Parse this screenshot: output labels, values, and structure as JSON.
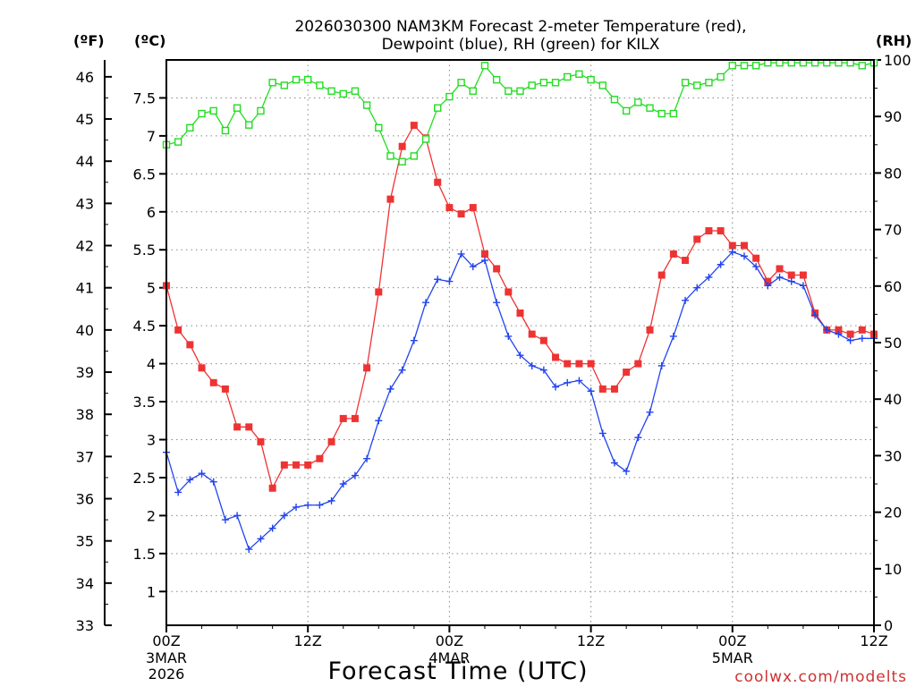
{
  "chart_data": {
    "type": "line",
    "title_line1": "2026030300 NAM3KM Forecast 2-meter Temperature (red),",
    "title_line2": "Dewpoint (blue), RH (green) for KILX",
    "xlabel": "Forecast Time (UTC)",
    "credit": "coolwx.com/modelts",
    "left_units_f": "(ºF)",
    "left_units_c": "(ºC)",
    "right_units": "(RH)",
    "x_range": [
      0,
      60
    ],
    "f_range": [
      33,
      46.4
    ],
    "rh_range": [
      0,
      100
    ],
    "f_ticks": [
      "33",
      "34",
      "35",
      "36",
      "37",
      "38",
      "39",
      "40",
      "41",
      "42",
      "43",
      "44",
      "45",
      "46"
    ],
    "c_ticks": [
      "1",
      "1.5",
      "2",
      "2.5",
      "3",
      "3.5",
      "4",
      "4.5",
      "5",
      "5.5",
      "6",
      "6.5",
      "7",
      "7.5"
    ],
    "rh_ticks": [
      "0",
      "10",
      "20",
      "30",
      "40",
      "50",
      "60",
      "70",
      "80",
      "90",
      "100"
    ],
    "x_ticks": [
      {
        "hour": 0,
        "label": "00Z",
        "date": "3MAR",
        "year": "2026"
      },
      {
        "hour": 12,
        "label": "12Z",
        "date": "",
        "year": ""
      },
      {
        "hour": 24,
        "label": "00Z",
        "date": "4MAR",
        "year": ""
      },
      {
        "hour": 36,
        "label": "12Z",
        "date": "",
        "year": ""
      },
      {
        "hour": 48,
        "label": "00Z",
        "date": "5MAR",
        "year": ""
      },
      {
        "hour": 60,
        "label": "12Z",
        "date": "",
        "year": ""
      }
    ],
    "series": [
      {
        "name": "Temperature",
        "color": "#ee3333",
        "axis": "F",
        "marker": "filled-square",
        "values": [
          41.05,
          40.0,
          39.65,
          39.1,
          38.75,
          38.6,
          37.7,
          37.7,
          37.35,
          36.25,
          36.8,
          36.8,
          36.8,
          36.95,
          37.35,
          37.9,
          37.9,
          39.1,
          40.9,
          43.1,
          44.35,
          44.85,
          44.55,
          43.5,
          42.9,
          42.75,
          42.9,
          41.8,
          41.45,
          40.9,
          40.4,
          39.9,
          39.75,
          39.35,
          39.2,
          39.2,
          39.2,
          38.6,
          38.6,
          39.0,
          39.2,
          40.0,
          41.3,
          41.8,
          41.65,
          42.15,
          42.35,
          42.35,
          42.0,
          42.0,
          41.7,
          41.15,
          41.45,
          41.3,
          41.3,
          40.4,
          40.0,
          40.0,
          39.9,
          40.0,
          39.9
        ]
      },
      {
        "name": "Dewpoint",
        "color": "#2244ee",
        "axis": "F",
        "marker": "plus",
        "values": [
          37.1,
          36.15,
          36.45,
          36.6,
          36.4,
          35.5,
          35.6,
          34.8,
          35.05,
          35.3,
          35.6,
          35.8,
          35.85,
          35.85,
          35.95,
          36.35,
          36.55,
          36.95,
          37.85,
          38.6,
          39.05,
          39.75,
          40.65,
          41.2,
          41.15,
          41.8,
          41.5,
          41.65,
          40.65,
          39.85,
          39.4,
          39.15,
          39.05,
          38.65,
          38.75,
          38.8,
          38.55,
          37.55,
          36.85,
          36.65,
          37.45,
          38.05,
          39.15,
          39.85,
          40.7,
          41.0,
          41.25,
          41.55,
          41.85,
          41.75,
          41.5,
          41.05,
          41.25,
          41.15,
          41.05,
          40.35,
          40.0,
          39.9,
          39.75,
          39.8,
          39.8
        ]
      },
      {
        "name": "RH",
        "color": "#22dd22",
        "axis": "RH",
        "marker": "open-square",
        "values": [
          85,
          85.5,
          88,
          90.5,
          91,
          87.5,
          91.5,
          88.5,
          91,
          96,
          95.5,
          96.5,
          96.5,
          95.5,
          94.5,
          94,
          94.5,
          92,
          88,
          83,
          82,
          83,
          86,
          91.5,
          93.5,
          96,
          94.5,
          99,
          96.5,
          94.5,
          94.5,
          95.5,
          96,
          96,
          97,
          97.5,
          96.5,
          95.5,
          93,
          91,
          92.5,
          91.5,
          90.5,
          90.5,
          96,
          95.5,
          96,
          97,
          99,
          99,
          99,
          99.5,
          99.5,
          99.5,
          99.5,
          99.5,
          99.5,
          99.5,
          99.5,
          99,
          99.5
        ]
      }
    ]
  }
}
